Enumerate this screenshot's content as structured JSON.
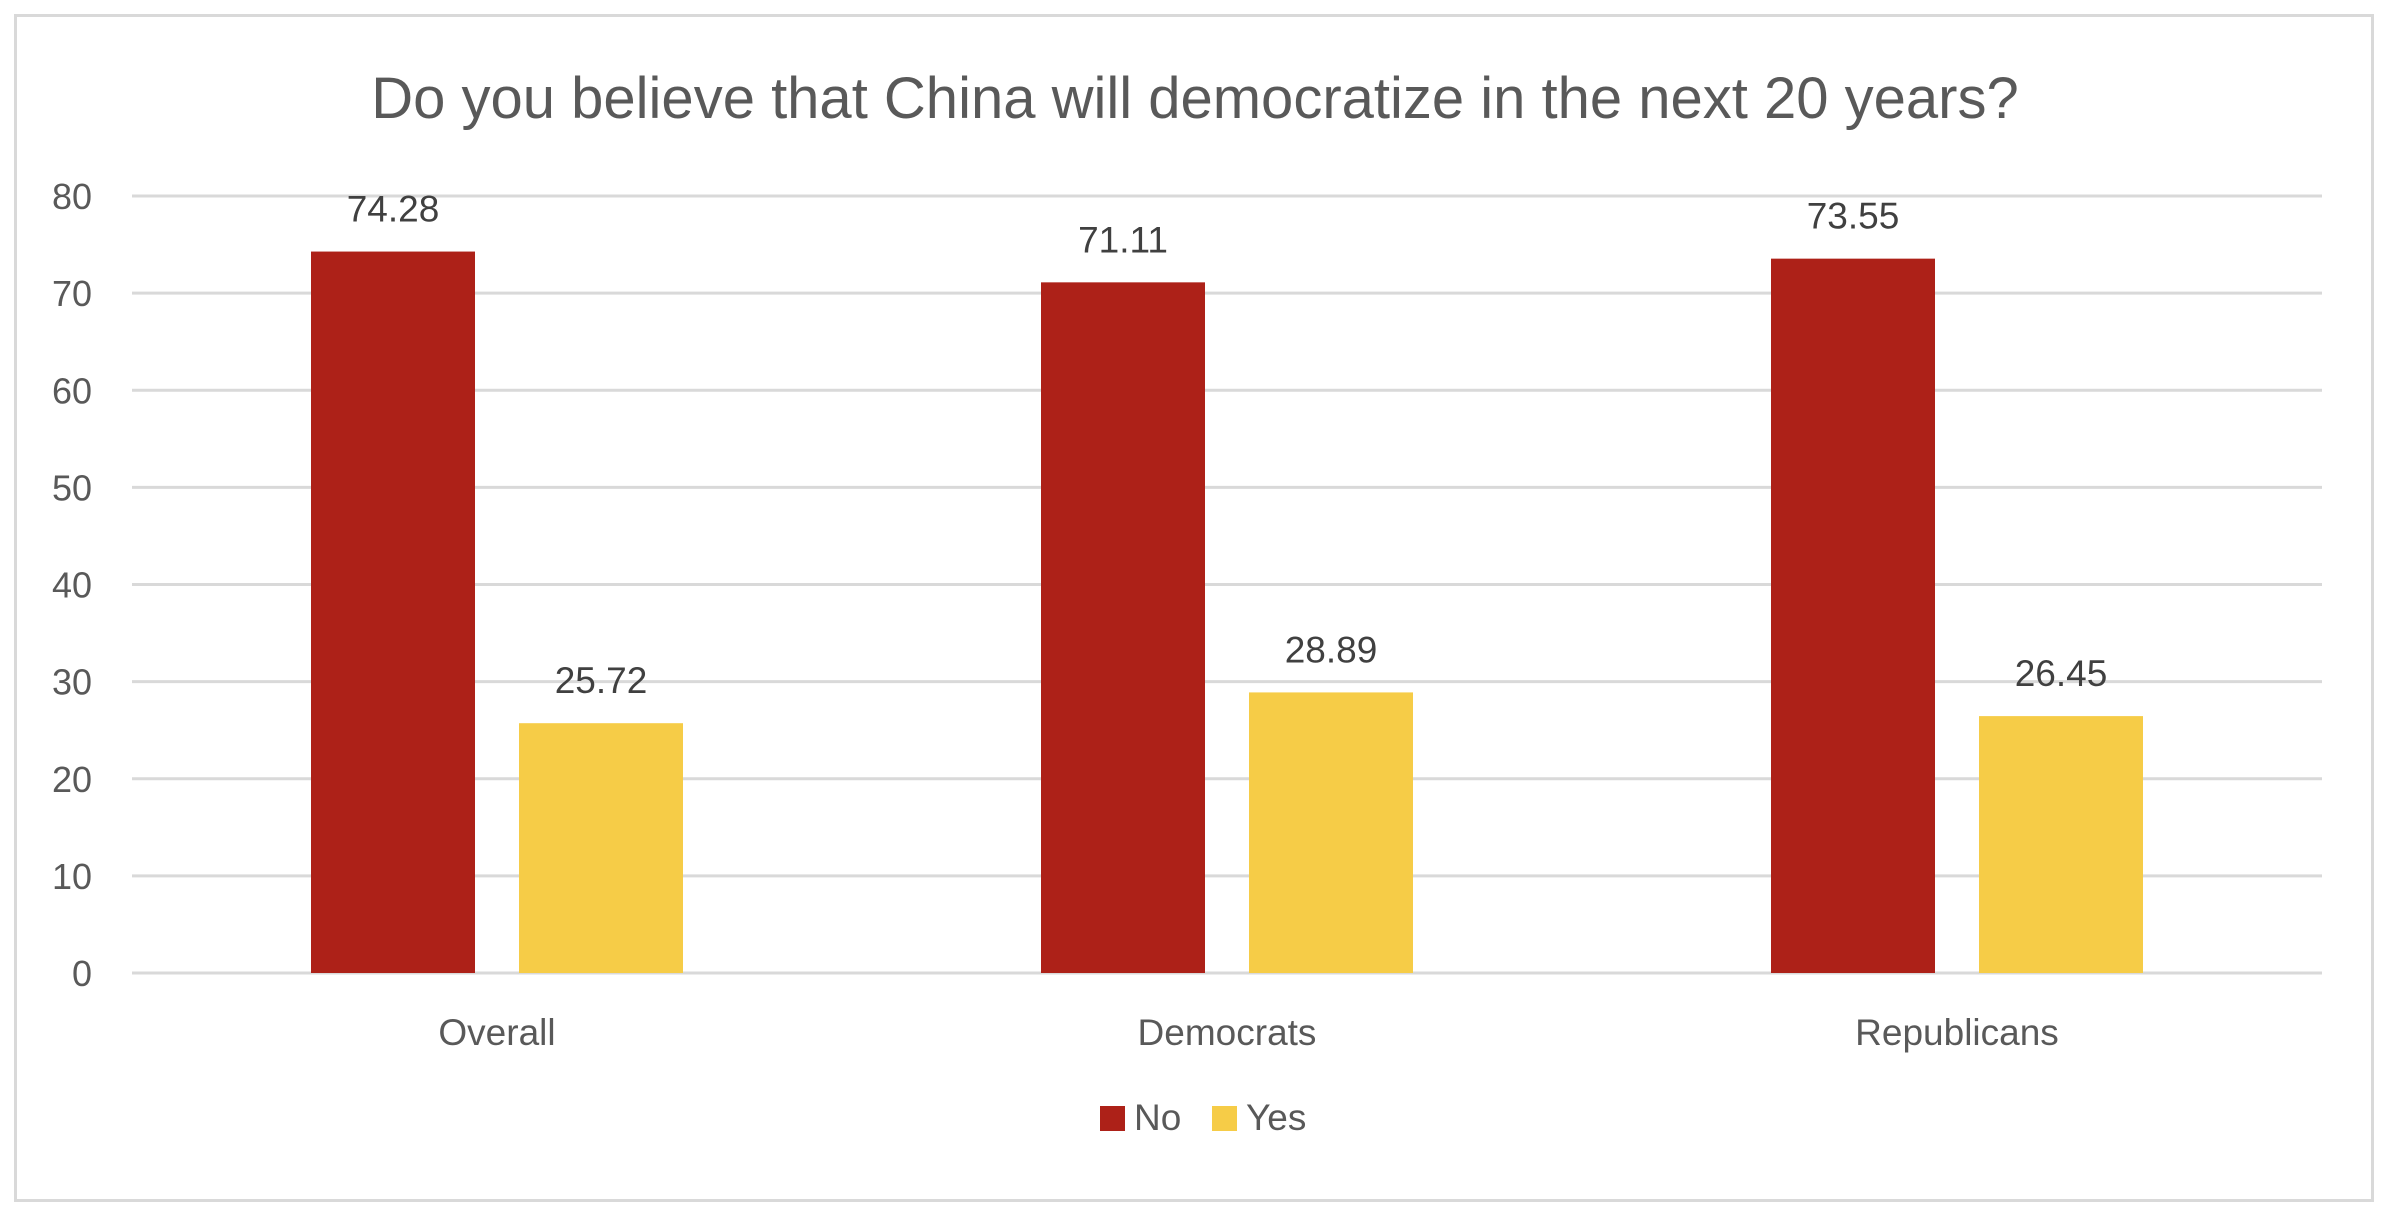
{
  "chart_data": {
    "type": "bar",
    "title": "Do you believe that China will democratize in the next 20 years?",
    "xlabel": "",
    "ylabel": "",
    "categories": [
      "Overall",
      "Democrats",
      "Republicans"
    ],
    "series": [
      {
        "name": "No",
        "values": [
          74.28,
          71.11,
          73.55
        ],
        "color": "#ad2118"
      },
      {
        "name": "Yes",
        "values": [
          25.72,
          28.89,
          26.45
        ],
        "color": "#f6cc47"
      }
    ],
    "ylim": [
      0,
      80
    ],
    "yticks": [
      0,
      10,
      20,
      30,
      40,
      50,
      60,
      70,
      80
    ],
    "grid": true,
    "legend": "bottom-center",
    "data_labels": true
  }
}
